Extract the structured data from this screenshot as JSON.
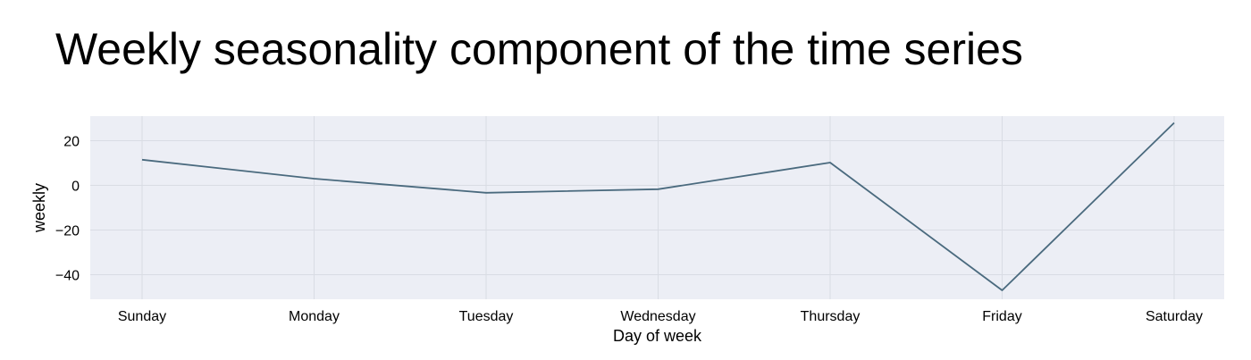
{
  "chart_data": {
    "type": "line",
    "title": "Weekly seasonality component of the time series",
    "xlabel": "Day of week",
    "ylabel": "weekly",
    "categories": [
      "Sunday",
      "Monday",
      "Tuesday",
      "Wednesday",
      "Thursday",
      "Friday",
      "Saturday"
    ],
    "series": [
      {
        "values": [
          11.5,
          3,
          -3.3,
          -1.7,
          10.2,
          -47,
          28
        ]
      }
    ],
    "yticks": [
      20,
      0,
      -20,
      -40
    ],
    "ylim": [
      -51,
      31
    ],
    "grid": true,
    "colors": {
      "line": "#4a6a7e",
      "plot_background": "#eceef5",
      "grid": "#d9dce4"
    }
  }
}
